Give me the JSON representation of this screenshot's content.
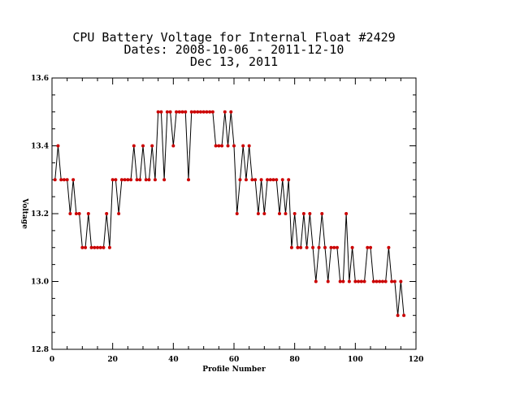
{
  "chart_data": {
    "type": "line",
    "title_lines": [
      "CPU Battery Voltage for Internal Float #2429",
      "Dates:  2008-10-06 -  2011-12-10",
      "Dec 13, 2011"
    ],
    "xlabel": "Profile Number",
    "ylabel": "Voltage",
    "xlim": [
      0,
      120
    ],
    "ylim": [
      12.8,
      13.6
    ],
    "x_ticks": [
      "0",
      "20",
      "40",
      "60",
      "80",
      "100",
      "120"
    ],
    "y_ticks": [
      "12.8",
      "13.0",
      "13.2",
      "13.4",
      "13.6"
    ],
    "line_color": "#000000",
    "marker_color": "#cc0000",
    "grid": false,
    "series": [
      {
        "x": [
          1,
          2,
          3,
          4,
          5,
          6,
          7,
          8,
          9,
          10,
          11,
          12,
          13,
          14,
          15,
          16,
          17,
          18,
          19,
          20,
          21,
          22,
          23,
          24,
          25,
          26,
          27,
          28,
          29,
          30,
          31,
          32,
          33,
          34,
          35,
          36,
          37,
          38,
          39,
          40,
          41,
          42,
          43,
          44,
          45,
          46,
          47,
          48,
          49,
          50,
          51,
          52,
          53,
          54,
          55,
          56,
          57,
          58,
          59,
          60,
          61,
          62,
          63,
          64,
          65,
          66,
          67,
          68,
          69,
          70,
          71,
          72,
          73,
          74,
          75,
          76,
          77,
          78,
          79,
          80,
          81,
          82,
          83,
          84,
          85,
          86,
          87,
          88,
          89,
          90,
          91,
          92,
          93,
          94,
          95,
          96,
          97,
          98,
          99,
          100,
          101,
          102,
          103,
          104,
          105,
          106,
          107,
          108,
          109,
          110,
          111,
          112,
          113,
          114,
          115,
          116
        ],
        "y": [
          13.3,
          13.4,
          13.3,
          13.3,
          13.3,
          13.2,
          13.3,
          13.2,
          13.2,
          13.1,
          13.1,
          13.2,
          13.1,
          13.1,
          13.1,
          13.1,
          13.1,
          13.2,
          13.1,
          13.3,
          13.3,
          13.2,
          13.3,
          13.3,
          13.3,
          13.3,
          13.4,
          13.3,
          13.3,
          13.4,
          13.3,
          13.3,
          13.4,
          13.3,
          13.5,
          13.5,
          13.3,
          13.5,
          13.5,
          13.4,
          13.5,
          13.5,
          13.5,
          13.5,
          13.3,
          13.5,
          13.5,
          13.5,
          13.5,
          13.5,
          13.5,
          13.5,
          13.5,
          13.4,
          13.4,
          13.4,
          13.5,
          13.4,
          13.5,
          13.4,
          13.2,
          13.3,
          13.4,
          13.3,
          13.4,
          13.3,
          13.3,
          13.2,
          13.3,
          13.2,
          13.3,
          13.3,
          13.3,
          13.3,
          13.2,
          13.3,
          13.2,
          13.3,
          13.1,
          13.2,
          13.1,
          13.1,
          13.2,
          13.1,
          13.2,
          13.1,
          13.0,
          13.1,
          13.2,
          13.1,
          13.0,
          13.1,
          13.1,
          13.1,
          13.0,
          13.0,
          13.2,
          13.0,
          13.1,
          13.0,
          13.0,
          13.0,
          13.0,
          13.1,
          13.1,
          13.0,
          13.0,
          13.0,
          13.0,
          13.0,
          13.1,
          13.0,
          13.0,
          12.9,
          13.0,
          12.9
        ]
      }
    ]
  }
}
